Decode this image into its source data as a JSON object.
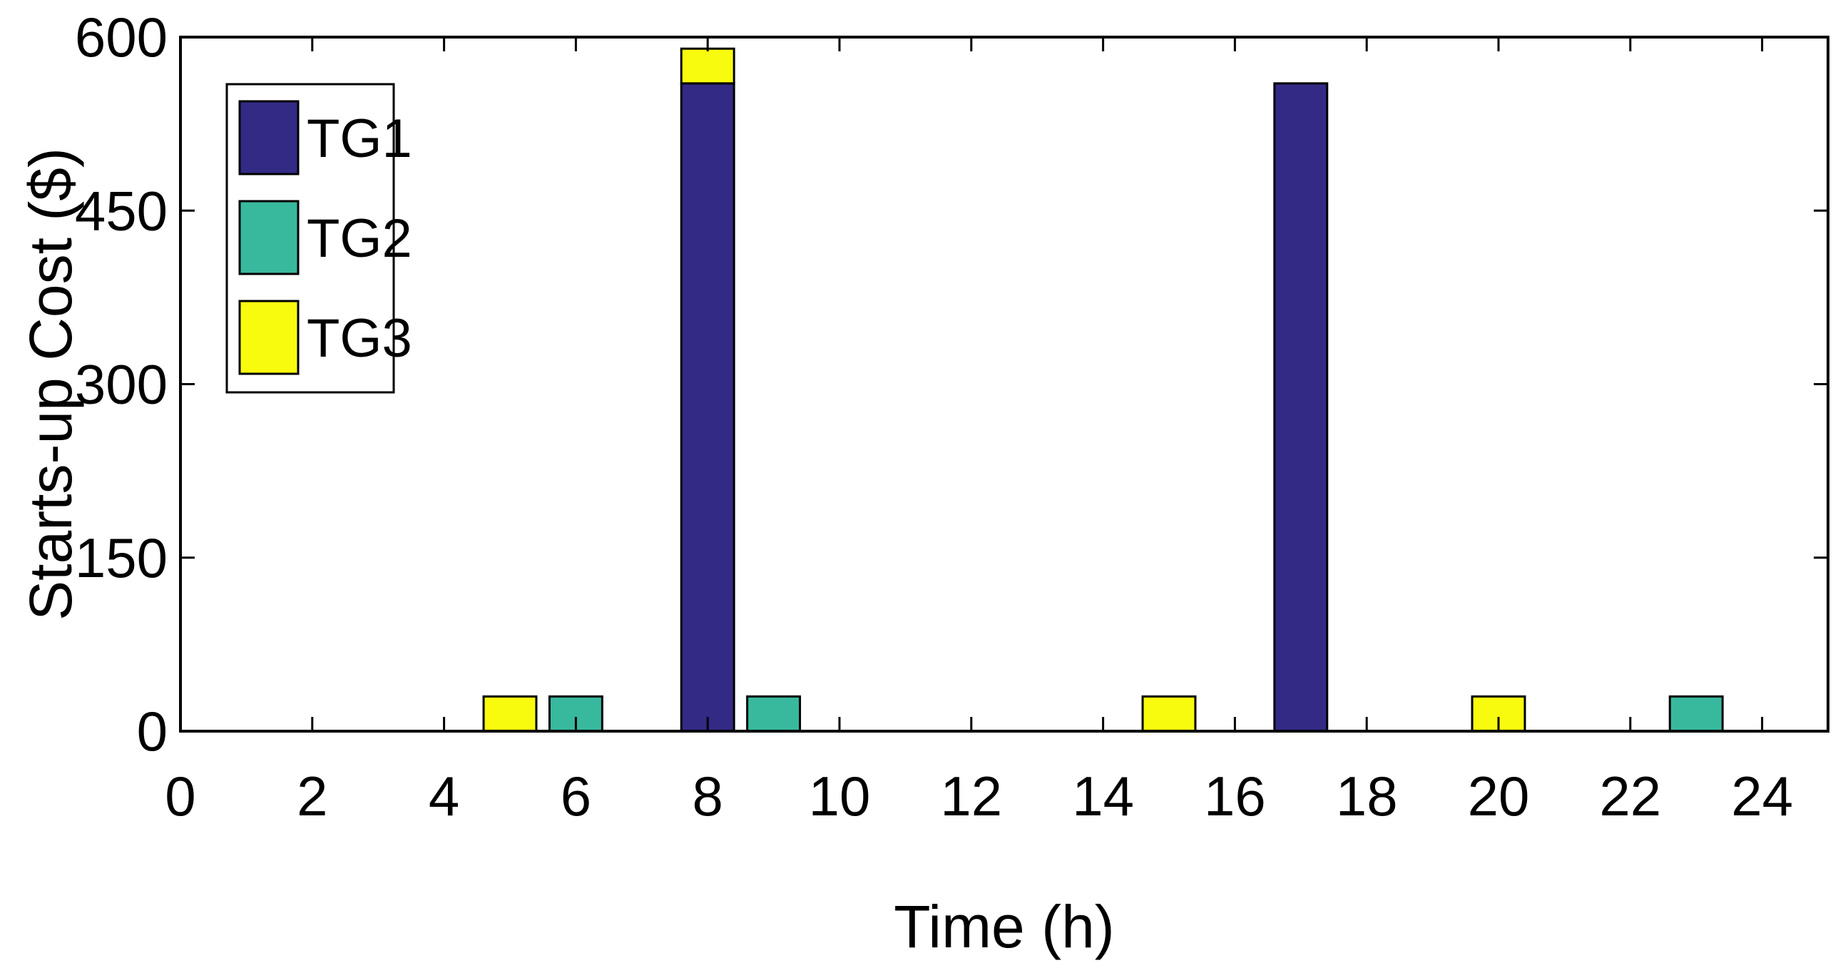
{
  "chart_data": {
    "type": "bar",
    "stacked": true,
    "xlabel": "Time (h)",
    "ylabel": "Starts-up Cost ($)",
    "xlim": [
      0,
      25
    ],
    "ylim": [
      0,
      600
    ],
    "xticks": [
      "0",
      "2",
      "4",
      "6",
      "8",
      "10",
      "12",
      "14",
      "16",
      "18",
      "20",
      "22",
      "24"
    ],
    "yticks": [
      "0",
      "150",
      "300",
      "450",
      "600"
    ],
    "legend_position": "top-left",
    "grid": false,
    "x": [
      1,
      2,
      3,
      4,
      5,
      6,
      7,
      8,
      9,
      10,
      11,
      12,
      13,
      14,
      15,
      16,
      17,
      18,
      19,
      20,
      21,
      22,
      23,
      24
    ],
    "series": [
      {
        "name": "TG1",
        "color": "#332a85",
        "values": [
          0,
          0,
          0,
          0,
          0,
          0,
          0,
          560,
          0,
          0,
          0,
          0,
          0,
          0,
          0,
          0,
          560,
          0,
          0,
          0,
          0,
          0,
          0,
          0
        ]
      },
      {
        "name": "TG2",
        "color": "#38b99e",
        "values": [
          0,
          0,
          0,
          0,
          0,
          30,
          0,
          0,
          30,
          0,
          0,
          0,
          0,
          0,
          0,
          0,
          0,
          0,
          0,
          0,
          0,
          0,
          30,
          0
        ]
      },
      {
        "name": "TG3",
        "color": "#f9fb0e",
        "values": [
          0,
          0,
          0,
          0,
          30,
          0,
          0,
          30,
          0,
          0,
          0,
          0,
          0,
          0,
          30,
          0,
          0,
          0,
          0,
          30,
          0,
          0,
          0,
          0
        ]
      }
    ]
  }
}
